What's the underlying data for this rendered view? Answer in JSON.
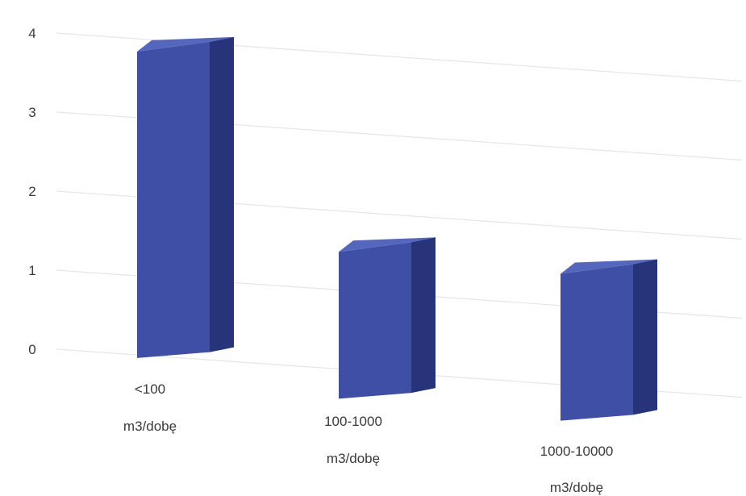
{
  "chart_data": {
    "type": "bar",
    "categories": [
      [
        "<100",
        "m3/dobę"
      ],
      [
        "100-1000",
        "m3/dobę"
      ],
      [
        "1000-10000",
        "m3/dobę"
      ]
    ],
    "values": [
      4,
      2,
      2
    ],
    "yticks": [
      "0",
      "1",
      "2",
      "3",
      "4"
    ],
    "ylim": [
      0,
      4
    ],
    "grid": true,
    "legend": "none",
    "three_d": true,
    "colors": {
      "front": "#3f4fa6",
      "side": "#28347a",
      "top": "#5566bd",
      "grid": "#e6e6e6",
      "text": "#3a3a3a"
    }
  }
}
